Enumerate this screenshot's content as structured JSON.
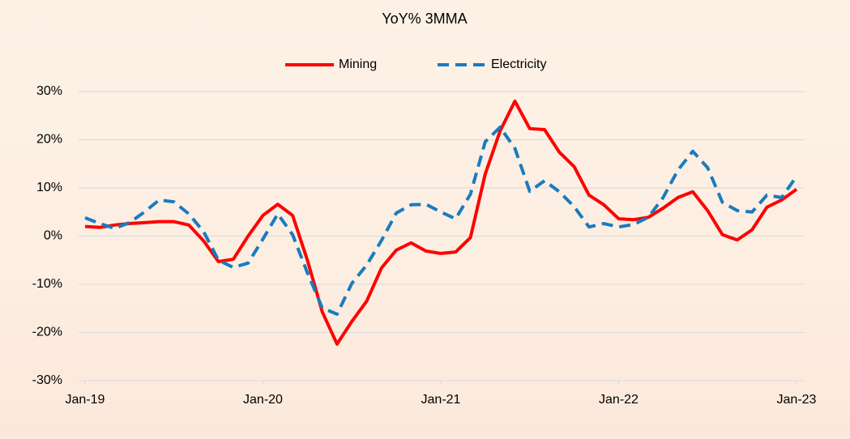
{
  "chart_data": {
    "type": "line",
    "title": "YoY% 3MMA",
    "categories": [
      "Jan-19",
      null,
      null,
      null,
      null,
      null,
      null,
      null,
      null,
      null,
      null,
      null,
      "Jan-20",
      null,
      null,
      null,
      null,
      null,
      null,
      null,
      null,
      null,
      null,
      null,
      "Jan-21",
      null,
      null,
      null,
      null,
      null,
      null,
      null,
      null,
      null,
      null,
      null,
      "Jan-22",
      null,
      null,
      null,
      null,
      null,
      null,
      null,
      null,
      null,
      null,
      null,
      "Jan-23"
    ],
    "series": [
      {
        "name": "Mining",
        "color": "#ff0000",
        "dash": false,
        "values": [
          2,
          1.8,
          2.3,
          2.6,
          2.8,
          3,
          3,
          2.3,
          -1,
          -5.3,
          -4.8,
          0,
          4.3,
          6.6,
          4.3,
          -5,
          -15.7,
          -22.4,
          -17.7,
          -13.5,
          -6.6,
          -2.9,
          -1.4,
          -3.1,
          -3.6,
          -3.3,
          -0.3,
          12.9,
          21.8,
          28,
          22.3,
          22.1,
          17.4,
          14.4,
          8.5,
          6.5,
          3.6,
          3.4,
          3.9,
          5.8,
          8,
          9.2,
          5.3,
          0.3,
          -0.8,
          1.3,
          6,
          7.5,
          9.7
        ]
      },
      {
        "name": "Electricity",
        "color": "#1a7bbf",
        "dash": true,
        "values": [
          3.8,
          2.6,
          1.6,
          2.8,
          5,
          7.5,
          7.1,
          4.6,
          0.9,
          -5,
          -6.5,
          -5.6,
          -0.6,
          4.6,
          0.3,
          -7.6,
          -14.9,
          -16.2,
          -9.8,
          -6,
          -0.9,
          4.8,
          6.5,
          6.6,
          5,
          3.6,
          8.7,
          19.6,
          22.6,
          18.2,
          9.3,
          11.5,
          9.2,
          6.1,
          1.9,
          2.6,
          1.9,
          2.4,
          3.9,
          8,
          13.7,
          17.6,
          14.2,
          7,
          5.3,
          5,
          8.5,
          8,
          12.4
        ]
      }
    ],
    "ylim": [
      -30,
      30
    ],
    "yticks": [
      {
        "value": -30,
        "label": "-30%"
      },
      {
        "value": -20,
        "label": "-20%"
      },
      {
        "value": -10,
        "label": "-10%"
      },
      {
        "value": 0,
        "label": "0%"
      },
      {
        "value": 10,
        "label": "10%"
      },
      {
        "value": 20,
        "label": "20%"
      },
      {
        "value": 30,
        "label": "30%"
      }
    ],
    "grid": true,
    "legend": "top"
  }
}
